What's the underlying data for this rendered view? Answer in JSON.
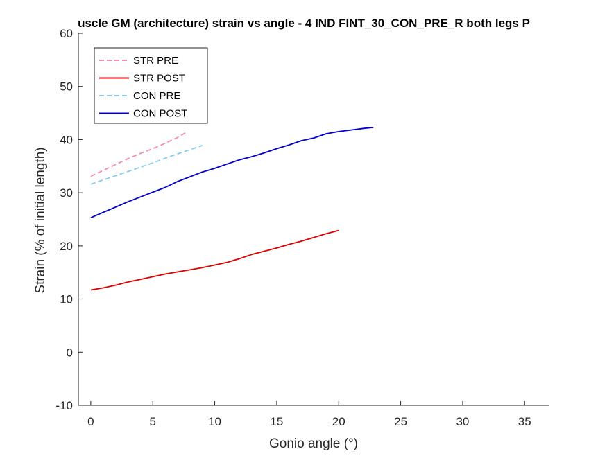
{
  "chart_data": {
    "type": "line",
    "title": "uscle GM (architecture) strain vs angle - 4 IND FINT_30_CON_PRE_R both legs P",
    "xlabel": "Gonio angle (°)",
    "ylabel": "Strain (% of initial length)",
    "xlim": [
      -1,
      37
    ],
    "ylim": [
      -10,
      60
    ],
    "xticks": [
      0,
      5,
      10,
      15,
      20,
      25,
      30,
      35
    ],
    "yticks": [
      -10,
      0,
      10,
      20,
      30,
      40,
      50,
      60
    ],
    "grid": false,
    "legend_position": "top-left",
    "series": [
      {
        "name": "STR PRE",
        "color": "#f48fb1",
        "dashed": true,
        "x": [
          0,
          1,
          2,
          3,
          4,
          5,
          6,
          7,
          7.8
        ],
        "y": [
          33.1,
          34.2,
          35.3,
          36.4,
          37.4,
          38.3,
          39.3,
          40.4,
          41.5
        ]
      },
      {
        "name": "STR POST",
        "color": "#dd0000",
        "dashed": false,
        "x": [
          0,
          1,
          2,
          3,
          4,
          5,
          6,
          7,
          8,
          9,
          10,
          11,
          12,
          13,
          14,
          15,
          16,
          17,
          18,
          19,
          20
        ],
        "y": [
          11.7,
          12.1,
          12.6,
          13.2,
          13.7,
          14.2,
          14.7,
          15.1,
          15.5,
          15.9,
          16.4,
          16.9,
          17.6,
          18.4,
          19.0,
          19.6,
          20.3,
          20.9,
          21.6,
          22.3,
          22.9
        ]
      },
      {
        "name": "CON PRE",
        "color": "#87cbee",
        "dashed": true,
        "x": [
          0,
          1,
          2,
          3,
          4,
          5,
          6,
          7,
          8,
          9
        ],
        "y": [
          31.6,
          32.4,
          33.2,
          34.0,
          34.8,
          35.6,
          36.5,
          37.3,
          38.1,
          38.9
        ]
      },
      {
        "name": "CON POST",
        "color": "#0000cc",
        "dashed": false,
        "x": [
          0,
          1,
          2,
          3,
          4,
          5,
          6,
          7,
          8,
          9,
          10,
          11,
          12,
          13,
          14,
          15,
          16,
          17,
          18,
          19,
          20,
          21,
          22,
          22.8
        ],
        "y": [
          25.3,
          26.3,
          27.3,
          28.3,
          29.2,
          30.1,
          31.0,
          32.1,
          33.0,
          33.9,
          34.6,
          35.4,
          36.2,
          36.8,
          37.5,
          38.3,
          39.0,
          39.8,
          40.3,
          41.1,
          41.5,
          41.8,
          42.1,
          42.3
        ]
      }
    ]
  }
}
